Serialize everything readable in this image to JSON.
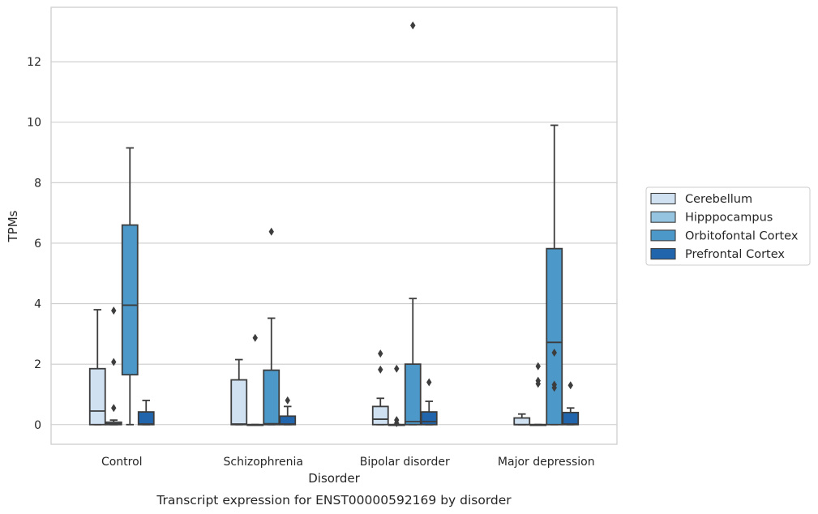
{
  "chart_data": {
    "type": "box",
    "caption": "Transcript expression for ENST00000592169 by disorder",
    "xlabel": "Disorder",
    "ylabel": "TPMs",
    "ylim": [
      -0.65,
      13.8
    ],
    "yticks": [
      0,
      2,
      4,
      6,
      8,
      10,
      12
    ],
    "grid": "horizontal",
    "legend_placement": "right",
    "categories": [
      "Control",
      "Schizophrenia",
      "Bipolar disorder",
      "Major depression"
    ],
    "series": [
      {
        "name": "Cerebellum",
        "color": "#d0e1f2",
        "boxes": [
          {
            "whislo": 0,
            "q1": 0,
            "med": 0.45,
            "q3": 1.85,
            "whishi": 3.8,
            "fliers": []
          },
          {
            "whislo": 0,
            "q1": 0,
            "med": 0.02,
            "q3": 1.48,
            "whishi": 2.15,
            "fliers": []
          },
          {
            "whislo": 0,
            "q1": 0,
            "med": 0.18,
            "q3": 0.6,
            "whishi": 0.87,
            "fliers": [
              1.82,
              2.35
            ]
          },
          {
            "whislo": 0,
            "q1": 0,
            "med": 0,
            "q3": 0.22,
            "whishi": 0.35,
            "fliers": []
          }
        ]
      },
      {
        "name": "Hipppocampus",
        "color": "#94c4df",
        "boxes": [
          {
            "whislo": 0,
            "q1": 0,
            "med": 0.03,
            "q3": 0.08,
            "whishi": 0.15,
            "fliers": [
              0.55,
              2.07,
              3.77
            ]
          },
          {
            "whislo": 0,
            "q1": 0,
            "med": 0,
            "q3": 0,
            "whishi": 0,
            "fliers": [
              2.87
            ]
          },
          {
            "whislo": 0,
            "q1": 0,
            "med": 0,
            "q3": 0,
            "whishi": 0,
            "fliers": [
              0.05,
              0.15,
              1.85
            ]
          },
          {
            "whislo": 0,
            "q1": 0,
            "med": 0,
            "q3": 0,
            "whishi": 0,
            "fliers": [
              1.35,
              1.45,
              1.93
            ]
          }
        ]
      },
      {
        "name": "Orbitofontal Cortex",
        "color": "#4b98c9",
        "boxes": [
          {
            "whislo": 0,
            "q1": 1.65,
            "med": 3.95,
            "q3": 6.6,
            "whishi": 9.15,
            "fliers": []
          },
          {
            "whislo": 0,
            "q1": 0,
            "med": 0.03,
            "q3": 1.8,
            "whishi": 3.52,
            "fliers": [
              6.38
            ]
          },
          {
            "whislo": 0,
            "q1": 0,
            "med": 0.1,
            "q3": 2.0,
            "whishi": 4.17,
            "fliers": [
              13.2
            ]
          },
          {
            "whislo": 0,
            "q1": 0,
            "med": 2.72,
            "q3": 5.82,
            "whishi": 9.9,
            "fliers": [
              1.22,
              1.32,
              2.38
            ]
          }
        ]
      },
      {
        "name": "Prefrontal Cortex",
        "color": "#2166ac",
        "boxes": [
          {
            "whislo": 0,
            "q1": 0,
            "med": 0.02,
            "q3": 0.42,
            "whishi": 0.8,
            "fliers": []
          },
          {
            "whislo": 0,
            "q1": 0,
            "med": 0.02,
            "q3": 0.28,
            "whishi": 0.6,
            "fliers": [
              0.8
            ]
          },
          {
            "whislo": 0,
            "q1": 0,
            "med": 0.1,
            "q3": 0.42,
            "whishi": 0.77,
            "fliers": [
              1.4
            ]
          },
          {
            "whislo": 0,
            "q1": 0,
            "med": 0.02,
            "q3": 0.4,
            "whishi": 0.55,
            "fliers": [
              1.3
            ]
          }
        ]
      }
    ]
  }
}
